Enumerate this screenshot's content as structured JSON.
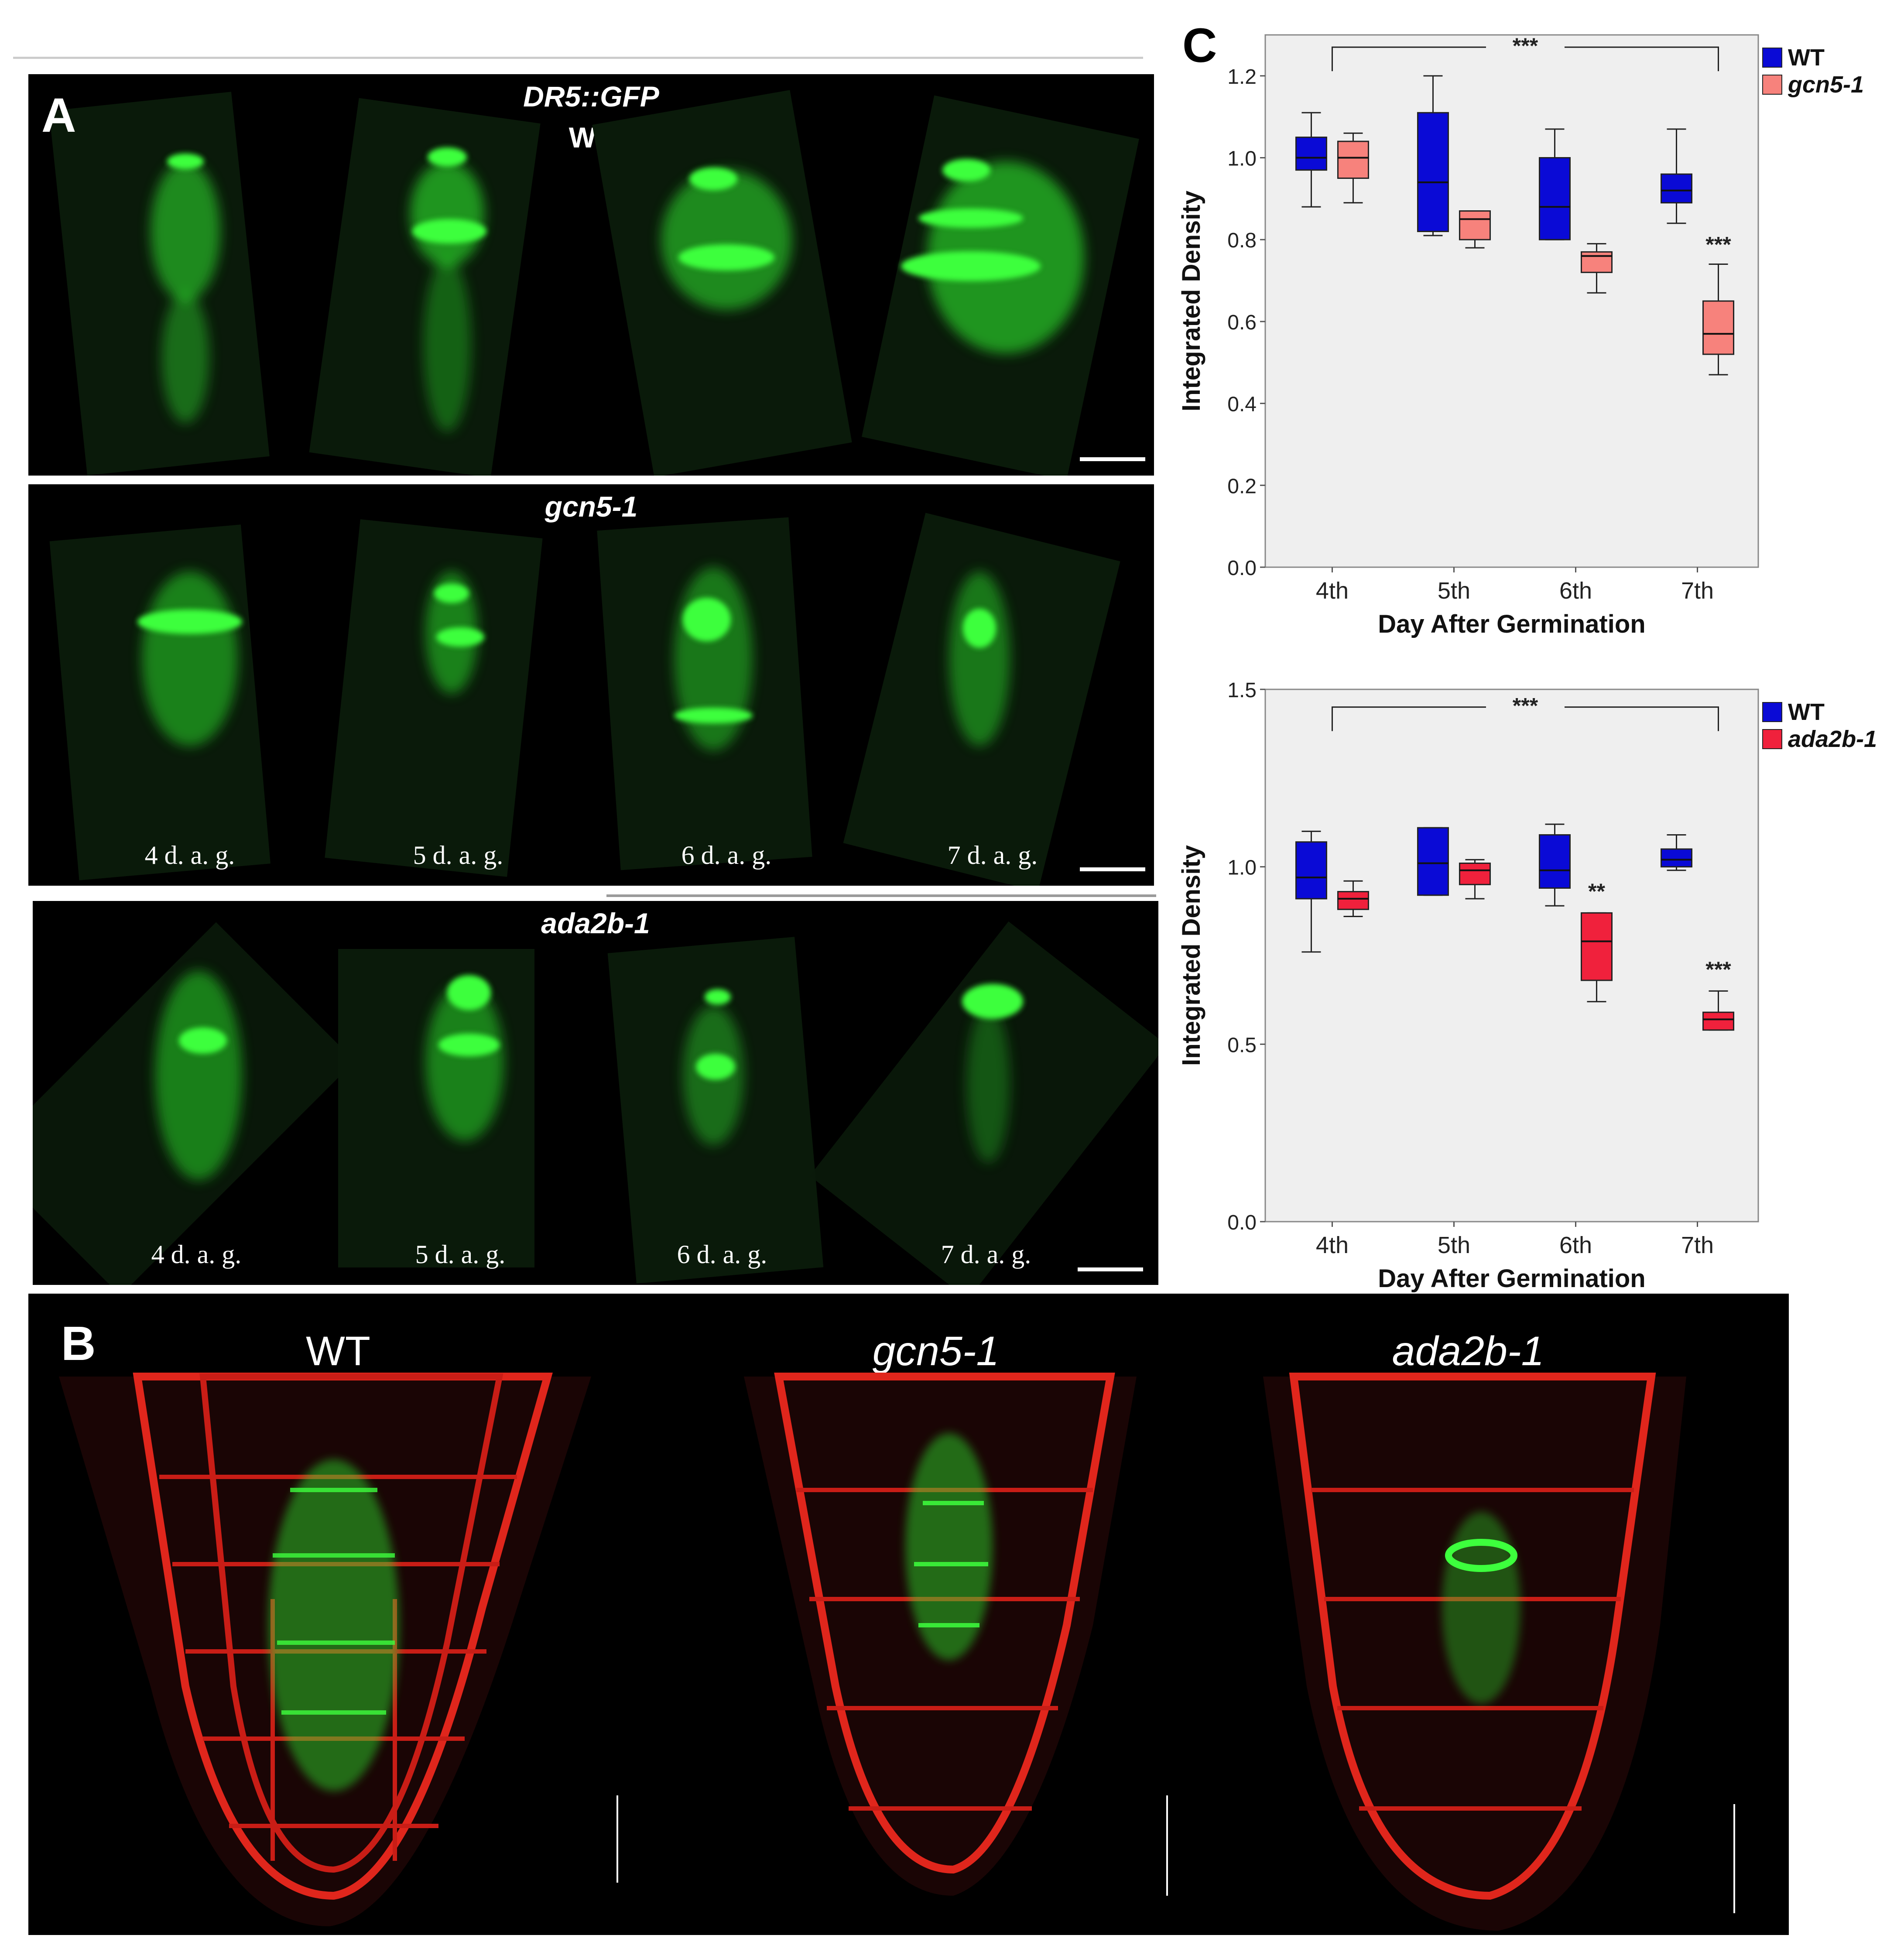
{
  "panel_a": {
    "label": "A",
    "rows": [
      {
        "title_line1": "DR5::GFP",
        "title_line2": "WT",
        "days": []
      },
      {
        "title_line1": "gcn5-1",
        "title_line2": "",
        "days": [
          "4 d. a. g.",
          "5 d. a. g.",
          "6 d. a. g.",
          "7 d. a. g."
        ]
      },
      {
        "title_line1": "ada2b-1",
        "title_line2": "",
        "days": [
          "4 d. a. g.",
          "5 d. a. g.",
          "6 d. a. g.",
          "7 d. a. g."
        ]
      }
    ]
  },
  "panel_b": {
    "label": "B",
    "titles": [
      "WT",
      "gcn5-1",
      "ada2b-1"
    ]
  },
  "panel_c": {
    "label": "C"
  },
  "colors": {
    "gfp_green": "#2ee82e",
    "membrane_red": "#e0261c",
    "wt_blue": "#0a0ad6",
    "gcn5_salmon": "#f7827c",
    "ada2b_red": "#f0213c",
    "plot_bg": "#efefef"
  },
  "chart_data": [
    {
      "type": "box",
      "title": "",
      "xlabel": "Day After Germination",
      "ylabel": "Integrated Density",
      "categories": [
        "4th",
        "5th",
        "6th",
        "7th"
      ],
      "ylim": [
        0.0,
        1.3
      ],
      "yticks": [
        "0.0",
        "0.2",
        "0.4",
        "0.6",
        "0.8",
        "1.0",
        "1.2"
      ],
      "legend_position": "top-right",
      "grid": false,
      "series": [
        {
          "name": "WT",
          "color": "#0a0ad6",
          "boxes": [
            {
              "min": 0.88,
              "q1": 0.97,
              "median": 1.0,
              "q3": 1.05,
              "max": 1.11
            },
            {
              "min": 0.81,
              "q1": 0.82,
              "median": 0.94,
              "q3": 1.11,
              "max": 1.2
            },
            {
              "min": 0.8,
              "q1": 0.8,
              "median": 0.88,
              "q3": 1.0,
              "max": 1.07
            },
            {
              "min": 0.84,
              "q1": 0.89,
              "median": 0.92,
              "q3": 0.96,
              "max": 1.07
            }
          ]
        },
        {
          "name": "gcn5-1",
          "color": "#f7827c",
          "boxes": [
            {
              "min": 0.89,
              "q1": 0.95,
              "median": 1.0,
              "q3": 1.04,
              "max": 1.06
            },
            {
              "min": 0.78,
              "q1": 0.8,
              "median": 0.85,
              "q3": 0.87,
              "max": 0.87
            },
            {
              "min": 0.67,
              "q1": 0.72,
              "median": 0.76,
              "q3": 0.77,
              "max": 0.79
            },
            {
              "min": 0.47,
              "q1": 0.52,
              "median": 0.57,
              "q3": 0.65,
              "max": 0.74
            }
          ]
        }
      ],
      "annotations": [
        {
          "text": "***",
          "type": "bracket",
          "from": "4th",
          "to": "7th",
          "y": 1.27
        },
        {
          "text": "***",
          "type": "point",
          "category": "7th",
          "series": "gcn5-1",
          "y": 0.77
        }
      ]
    },
    {
      "type": "box",
      "title": "",
      "xlabel": "Day After Germination",
      "ylabel": "Integrated Density",
      "categories": [
        "4th",
        "5th",
        "6th",
        "7th"
      ],
      "ylim": [
        0.0,
        1.5
      ],
      "yticks": [
        "0.0",
        "0.5",
        "1.0",
        "1.5"
      ],
      "legend_position": "top-right",
      "grid": false,
      "series": [
        {
          "name": "WT",
          "color": "#0a0ad6",
          "boxes": [
            {
              "min": 0.76,
              "q1": 0.91,
              "median": 0.97,
              "q3": 1.07,
              "max": 1.1
            },
            {
              "min": 0.92,
              "q1": 0.92,
              "median": 1.01,
              "q3": 1.11,
              "max": 1.11
            },
            {
              "min": 0.89,
              "q1": 0.94,
              "median": 0.99,
              "q3": 1.09,
              "max": 1.12
            },
            {
              "min": 0.99,
              "q1": 1.0,
              "median": 1.02,
              "q3": 1.05,
              "max": 1.09
            }
          ]
        },
        {
          "name": "ada2b-1",
          "color": "#f0213c",
          "boxes": [
            {
              "min": 0.86,
              "q1": 0.88,
              "median": 0.91,
              "q3": 0.93,
              "max": 0.96
            },
            {
              "min": 0.91,
              "q1": 0.95,
              "median": 0.99,
              "q3": 1.01,
              "max": 1.02
            },
            {
              "min": 0.62,
              "q1": 0.68,
              "median": 0.79,
              "q3": 0.87,
              "max": 0.87
            },
            {
              "min": 0.54,
              "q1": 0.54,
              "median": 0.57,
              "q3": 0.59,
              "max": 0.65
            }
          ]
        }
      ],
      "annotations": [
        {
          "text": "***",
          "type": "bracket",
          "from": "4th",
          "to": "7th",
          "y": 1.45
        },
        {
          "text": "**",
          "type": "point",
          "category": "6th",
          "series": "ada2b-1",
          "y": 0.91
        },
        {
          "text": "***",
          "type": "point",
          "category": "7th",
          "series": "ada2b-1",
          "y": 0.69
        }
      ]
    }
  ]
}
